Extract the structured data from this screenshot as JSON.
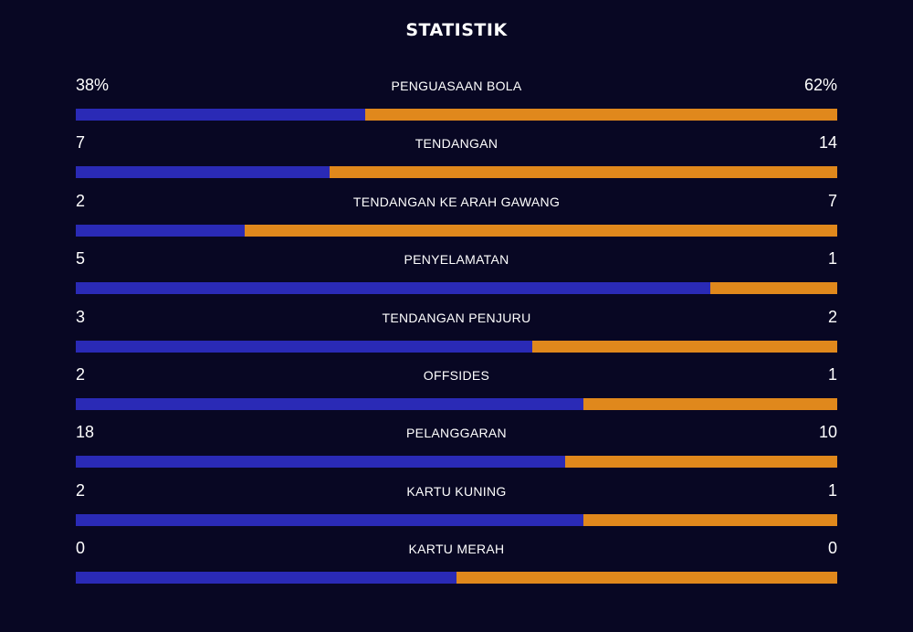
{
  "title": "STATISTIK",
  "colors": {
    "background": "#080723",
    "home": "#2a2ab6",
    "away": "#e0881c",
    "text": "#ffffff"
  },
  "stats": [
    {
      "label": "PENGUASAAN BOLA",
      "home": "38%",
      "away": "62%",
      "home_share": 0.38
    },
    {
      "label": "TENDANGAN",
      "home": "7",
      "away": "14",
      "home_share": 0.3333
    },
    {
      "label": "TENDANGAN KE ARAH GAWANG",
      "home": "2",
      "away": "7",
      "home_share": 0.2222
    },
    {
      "label": "PENYELAMATAN",
      "home": "5",
      "away": "1",
      "home_share": 0.8333
    },
    {
      "label": "TENDANGAN PENJURU",
      "home": "3",
      "away": "2",
      "home_share": 0.6
    },
    {
      "label": "OFFSIDES",
      "home": "2",
      "away": "1",
      "home_share": 0.6667
    },
    {
      "label": "PELANGGARAN",
      "home": "18",
      "away": "10",
      "home_share": 0.6429
    },
    {
      "label": "KARTU KUNING",
      "home": "2",
      "away": "1",
      "home_share": 0.6667
    },
    {
      "label": "KARTU MERAH",
      "home": "0",
      "away": "0",
      "home_share": 0.5
    }
  ]
}
